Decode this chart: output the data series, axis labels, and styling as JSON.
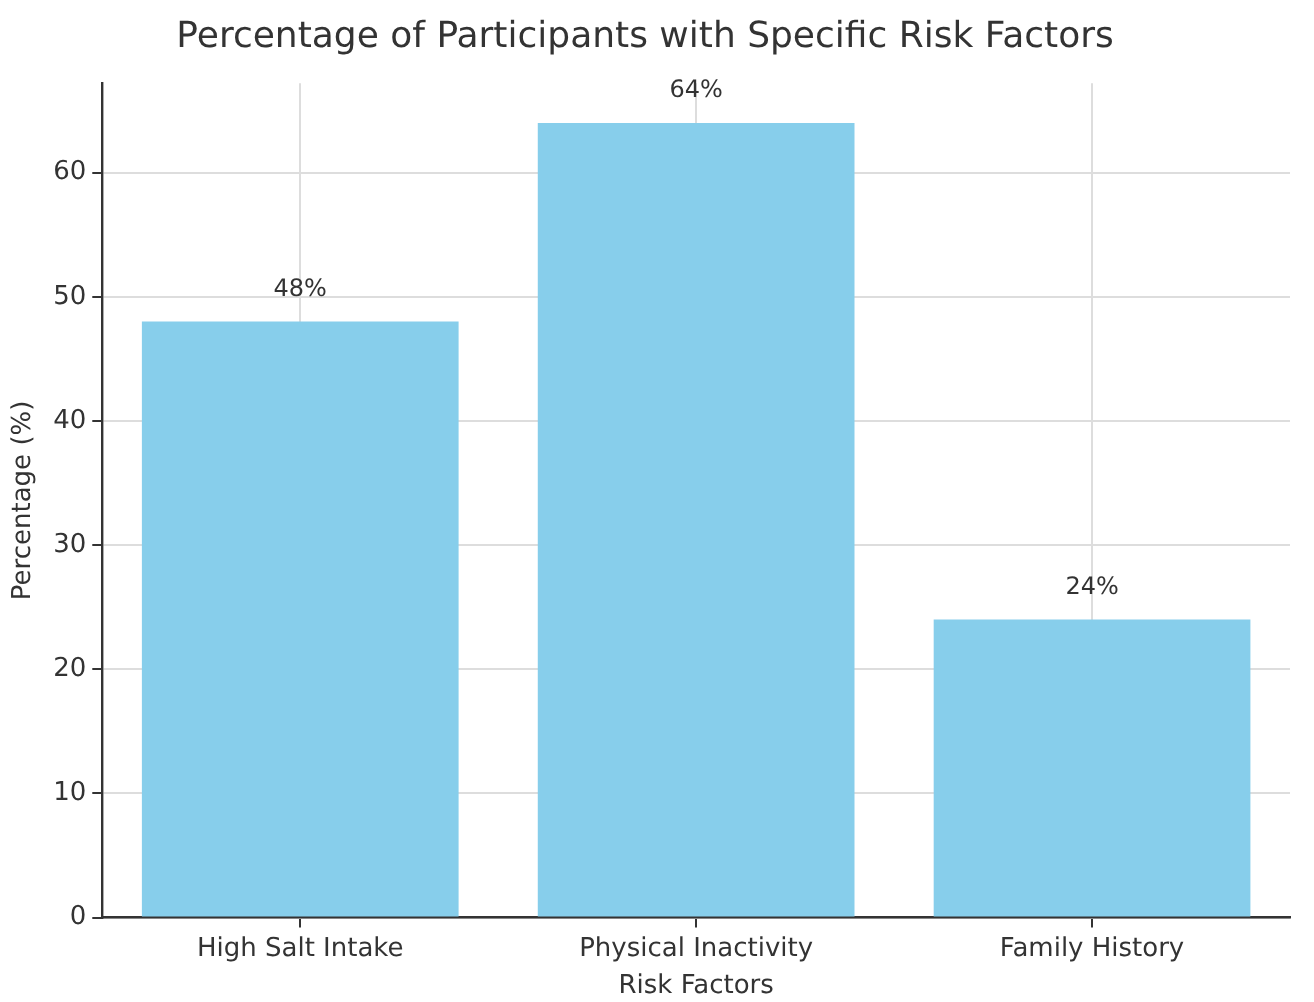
{
  "chart_data": {
    "type": "bar",
    "title": "Percentage of Participants with Specific Risk Factors",
    "xlabel": "Risk Factors",
    "ylabel": "Percentage (%)",
    "categories": [
      "High Salt Intake",
      "Physical Inactivity",
      "Family History"
    ],
    "values": [
      48,
      64,
      24
    ],
    "value_labels": [
      "48%",
      "64%",
      "24%"
    ],
    "color": "#87ceeb",
    "ylim": [
      0,
      67.2
    ],
    "yticks": [
      0,
      10,
      20,
      30,
      40,
      50,
      60
    ],
    "grid": true
  }
}
